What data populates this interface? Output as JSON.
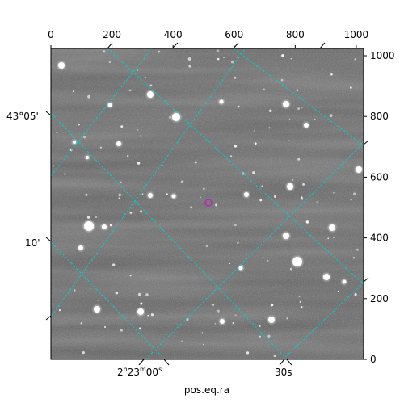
{
  "figure": {
    "pixel_axes": {
      "x_ticks": [
        "0",
        "200",
        "400",
        "600",
        "800",
        "1000"
      ],
      "y_ticks": [
        "0",
        "200",
        "400",
        "600",
        "800",
        "1000"
      ]
    },
    "wcs_axes": {
      "dec_ticks": [
        "43°05'",
        "10'"
      ],
      "ra_ticks": [
        "2h23m00s",
        "30s"
      ],
      "xlabel": "pos.eq.ra"
    },
    "colors": {
      "grid": "#00d0d0",
      "marker": "#c020c0",
      "sky_background": "#5e5e5e"
    }
  }
}
